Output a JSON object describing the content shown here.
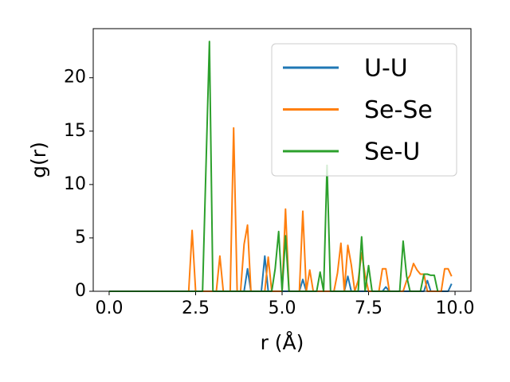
{
  "chart_data": {
    "type": "line",
    "xlabel": "r (Å)",
    "ylabel": "g(r)",
    "xlim": [
      -0.46,
      10.46
    ],
    "ylim": [
      0,
      24.6
    ],
    "xticks": [
      {
        "value": 0,
        "label": "0.0"
      },
      {
        "value": 2.5,
        "label": "2.5"
      },
      {
        "value": 5,
        "label": "5.0"
      },
      {
        "value": 7.5,
        "label": "7.5"
      },
      {
        "value": 10,
        "label": "10.0"
      }
    ],
    "yticks": [
      0,
      5,
      10,
      15,
      20
    ],
    "legend": "upper right",
    "series": [
      {
        "name": "U-U",
        "color": "#1f77b4",
        "x": [
          0,
          3.9,
          4.0,
          4.1,
          4.4,
          4.5,
          4.6,
          5.5,
          5.6,
          5.7,
          6.8,
          6.9,
          7.0,
          7.9,
          8.0,
          8.1,
          9.1,
          9.2,
          9.3,
          9.8,
          9.9
        ],
        "values": [
          0,
          0,
          2.1,
          0,
          0,
          3.3,
          0,
          0,
          1.1,
          0,
          0,
          1.4,
          0,
          0,
          0.4,
          0,
          0,
          1.0,
          0,
          0,
          0.7
        ]
      },
      {
        "name": "Se-Se",
        "color": "#ff7f0e",
        "x": [
          0,
          2.3,
          2.4,
          2.5,
          3.1,
          3.2,
          3.3,
          3.5,
          3.6,
          3.7,
          3.8,
          3.9,
          4.0,
          4.1,
          4.5,
          4.6,
          4.7,
          5.0,
          5.1,
          5.2,
          5.5,
          5.6,
          5.7,
          5.8,
          5.9,
          6.5,
          6.6,
          6.7,
          6.8,
          6.9,
          7.0,
          7.1,
          7.2,
          7.3,
          7.4,
          7.5,
          7.8,
          7.9,
          8.0,
          8.1,
          8.5,
          8.6,
          8.7,
          8.8,
          8.9,
          9.0,
          9.1,
          9.2,
          9.6,
          9.7,
          9.8,
          9.9
        ],
        "values": [
          0,
          0,
          5.7,
          0,
          0,
          3.3,
          0,
          0,
          15.3,
          0,
          0,
          4.4,
          6.2,
          0,
          0,
          3.2,
          0,
          0,
          7.7,
          0,
          0,
          7.5,
          0,
          2.0,
          0,
          0,
          1.7,
          4.5,
          0,
          4.3,
          2.5,
          0,
          1.0,
          3.6,
          1.5,
          0,
          0,
          2.1,
          2.1,
          0,
          0,
          1.0,
          1.5,
          2.6,
          2.0,
          1.6,
          1.6,
          0,
          0,
          2.1,
          2.1,
          1.4
        ]
      },
      {
        "name": "Se-U",
        "color": "#2ca02c",
        "x": [
          0,
          2.7,
          2.9,
          3.0,
          4.7,
          4.8,
          4.9,
          5.0,
          5.1,
          5.2,
          6.0,
          6.1,
          6.2,
          6.3,
          6.4,
          7.2,
          7.3,
          7.4,
          7.5,
          7.6,
          8.4,
          8.5,
          8.6,
          8.7,
          9.0,
          9.1,
          9.2,
          9.3,
          9.4,
          9.5
        ],
        "values": [
          0,
          0,
          23.4,
          0,
          0,
          2.1,
          5.6,
          0,
          5.2,
          0,
          0,
          1.8,
          0,
          11.8,
          0,
          0,
          5.1,
          0,
          2.4,
          0,
          0,
          4.7,
          1.4,
          0,
          0,
          1.6,
          1.6,
          1.5,
          1.5,
          0
        ]
      }
    ]
  }
}
